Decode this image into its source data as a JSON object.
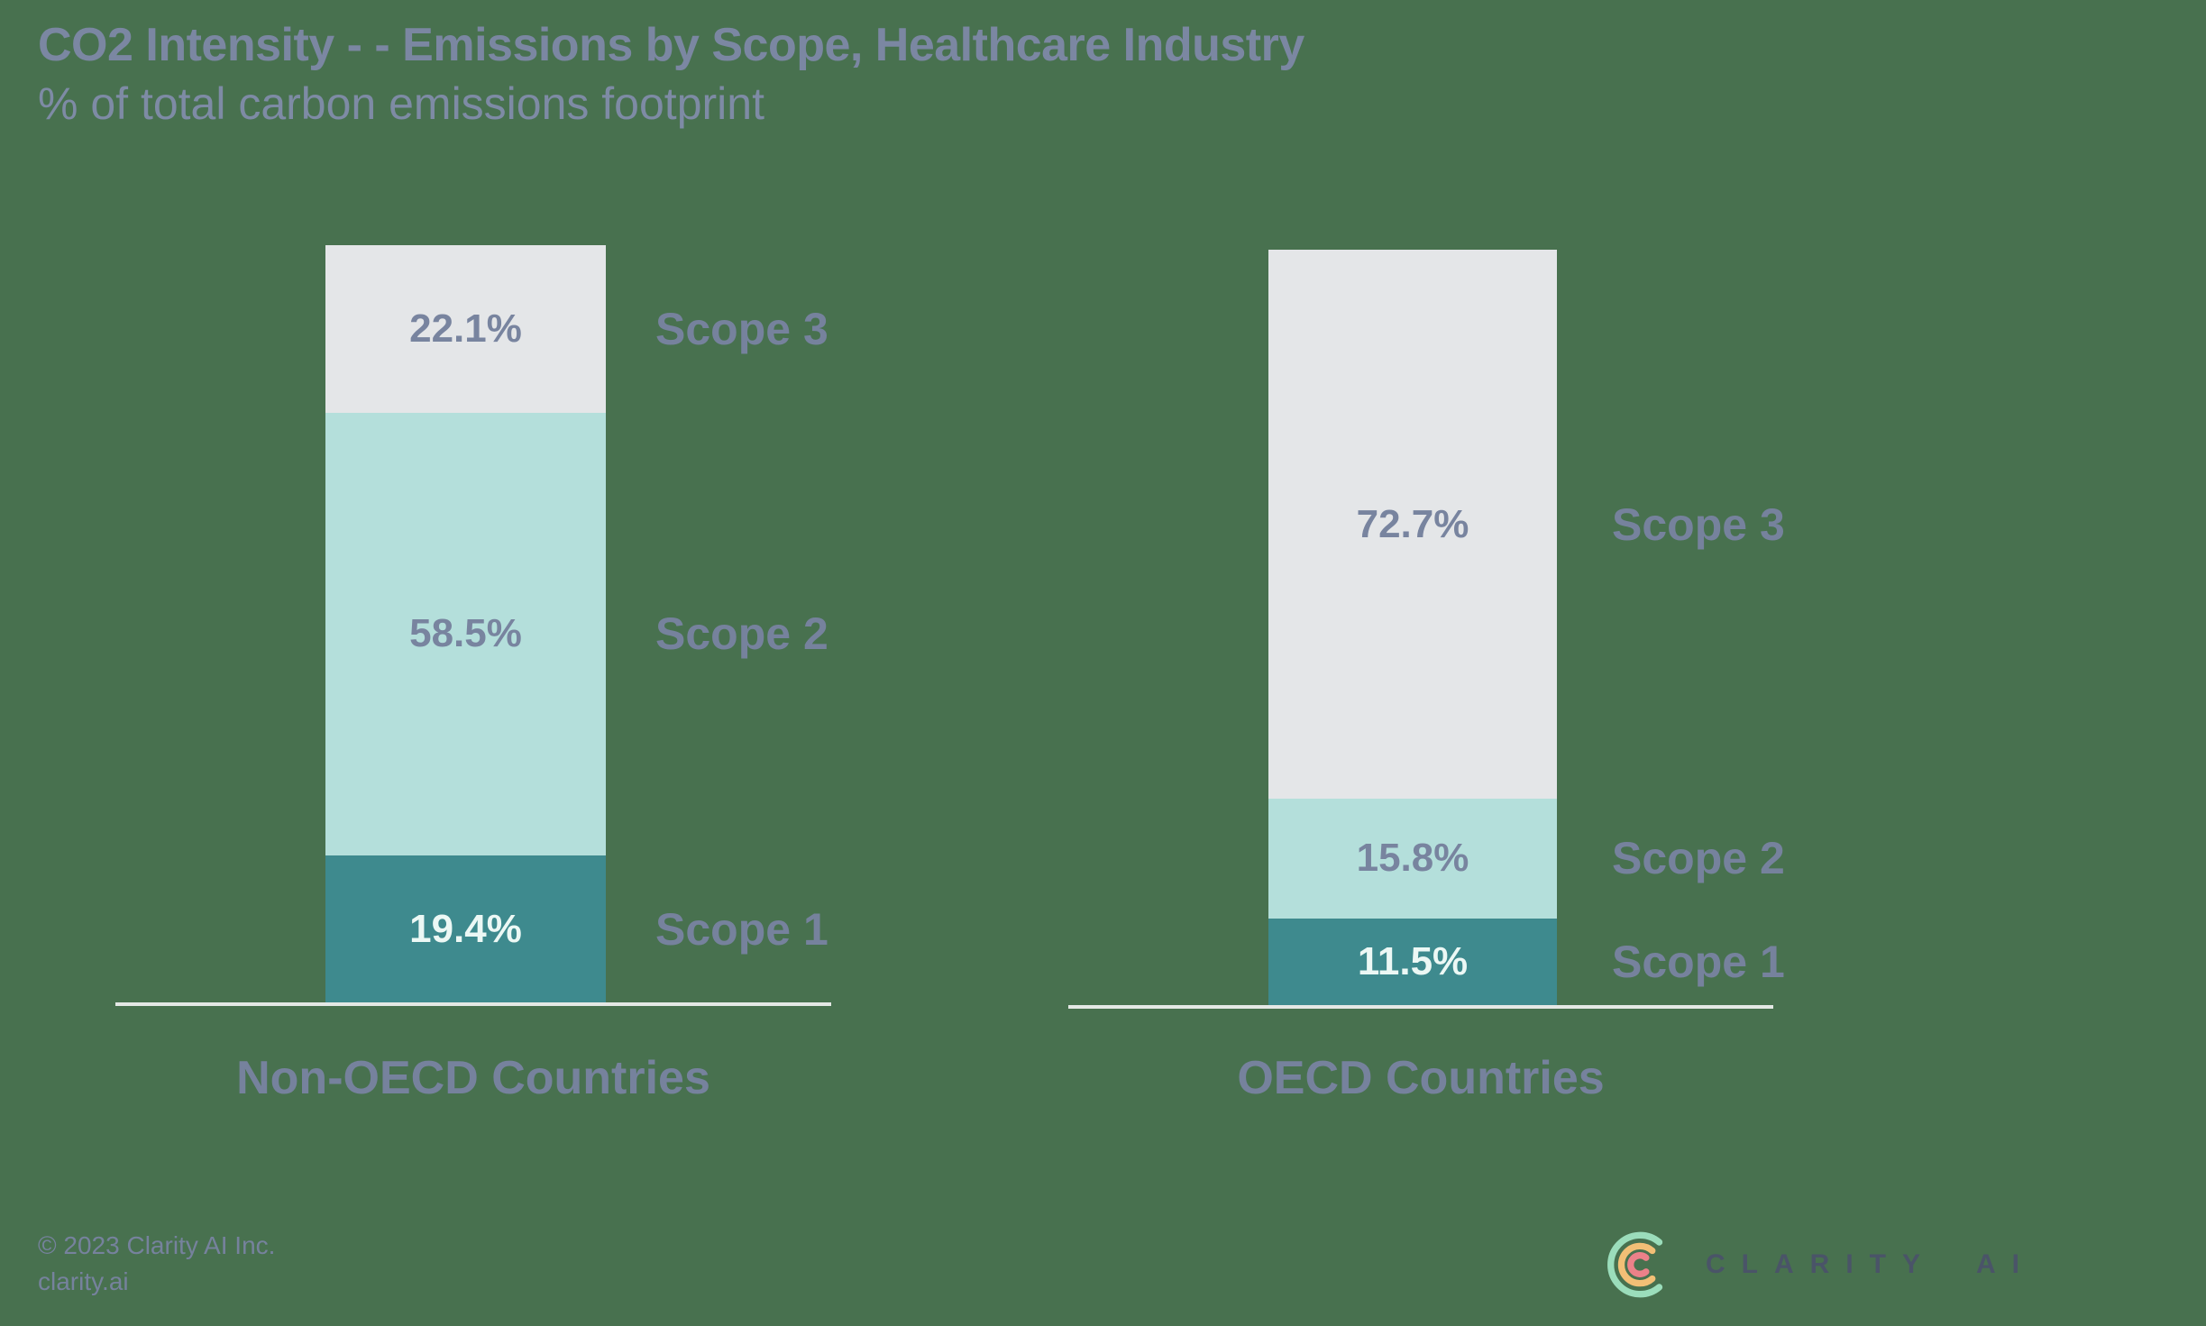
{
  "header": {
    "title": "CO2 Intensity - - Emissions by Scope, Healthcare Industry",
    "subtitle": "% of total carbon emissions footprint"
  },
  "chart_data": {
    "type": "bar",
    "stacked": true,
    "unit": "%",
    "title": "CO2 Intensity - - Emissions by Scope, Healthcare Industry",
    "subtitle": "% of total carbon emissions footprint",
    "categories": [
      "Non-OECD Countries",
      "OECD Countries"
    ],
    "series": [
      {
        "name": "Scope 1",
        "values": [
          19.4,
          11.5
        ],
        "color": "#3E8A8E",
        "label_color": "#ECF8F5"
      },
      {
        "name": "Scope 2",
        "values": [
          58.5,
          15.8
        ],
        "color": "#B4DFDB",
        "label_color": "#78849F"
      },
      {
        "name": "Scope 3",
        "values": [
          22.1,
          72.7
        ],
        "color": "#E4E6E8",
        "label_color": "#78849F"
      }
    ],
    "ylim": [
      0,
      100
    ],
    "grid": false,
    "legend_position": "segment names right of each bar",
    "value_labels": "inside segment, centered"
  },
  "footer": {
    "copyright": "© 2023 Clarity AI Inc.",
    "website": "clarity.ai",
    "logo_text_primary": "CLARITY",
    "logo_text_secondary": "AI"
  },
  "colors": {
    "background": "#48714F",
    "title_text": "#7B87A2",
    "subtitle_text": "#7E8BA5",
    "label_text": "#76829D",
    "axis_line": "#E4E8E5",
    "scope1": "#3E8A8E",
    "scope2": "#B4DFDB",
    "scope3": "#E4E6E8",
    "value_text_dark_segment": "#ECF8F5",
    "value_text_light_segment": "#78849F",
    "logo_text": "#4A5468",
    "logo_arc_outer": "#9BDDBB",
    "logo_arc_middle": "#F2BF76",
    "logo_arc_inner": "#EC8189"
  }
}
